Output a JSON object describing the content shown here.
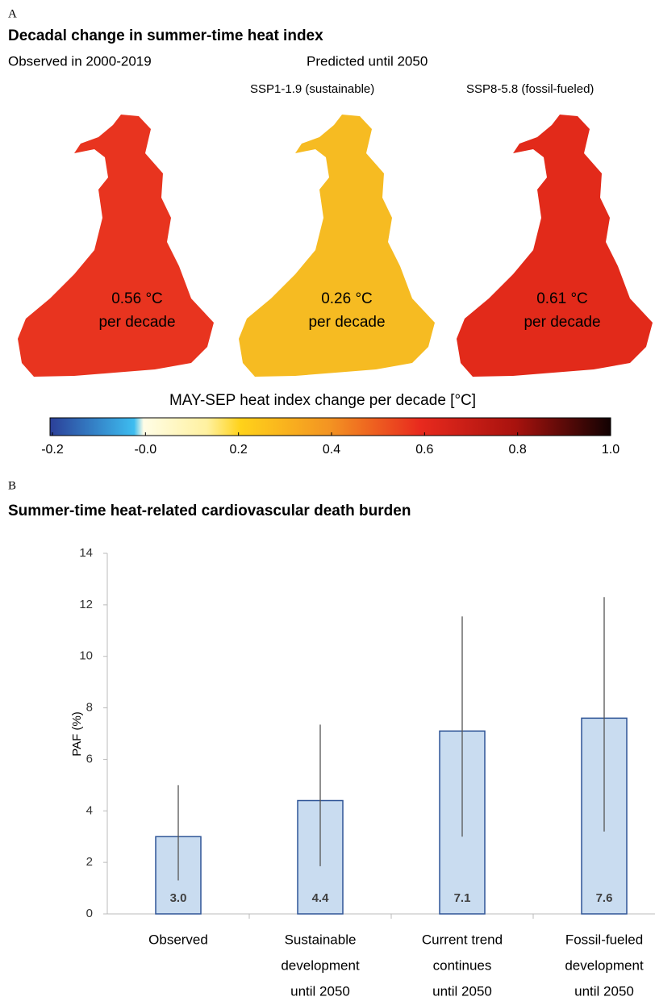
{
  "panel_a": {
    "panel_label": "A",
    "title": "Decadal change in summer-time heat index",
    "observed_label": "Observed  in 2000-2019",
    "predicted_label": "Predicted  until 2050",
    "maps": [
      {
        "value": 0.56,
        "value_label": "0.56 °C",
        "unit": "per decade",
        "color": "#e8341f"
      },
      {
        "scenario": "SSP1-1.9 (sustainable)",
        "value": 0.26,
        "value_label": "0.26 °C",
        "unit": "per decade",
        "color": "#f6bb22"
      },
      {
        "scenario": "SSP8-5.8 (fossil-fueled)",
        "value": 0.61,
        "value_label": "0.61 °C",
        "unit": "per decade",
        "color": "#e22a1a"
      }
    ],
    "colorbar": {
      "title": "MAY-SEP heat index change per decade [°C]",
      "xlim": [
        -0.2,
        1.0
      ],
      "xticks": [
        -0.2,
        {
          "value": 0,
          "label": "-0.0"
        },
        0.2,
        0.4,
        0.6,
        0.8,
        {
          "value": 1,
          "label": "1.0"
        }
      ]
    }
  },
  "chart_data": {
    "type": "bar",
    "panel_label": "B",
    "title": "Summer-time heat-related cardiovascular death burden",
    "ylabel": "PAF (%)",
    "categories": [
      [
        "Observed"
      ],
      [
        "Sustainable",
        "development",
        "until 2050"
      ],
      [
        "Current trend",
        "continues",
        "until 2050"
      ],
      [
        "Fossil-fueled",
        "development",
        "until 2050"
      ]
    ],
    "values": [
      3.0,
      4.4,
      7.1,
      7.6
    ],
    "value_labels": [
      "3.0",
      "4.4",
      "7.1",
      "7.6"
    ],
    "error_low": [
      1.3,
      1.85,
      3.0,
      3.2
    ],
    "error_high": [
      5.0,
      7.35,
      11.55,
      12.3
    ],
    "color": "#c9dcf0",
    "edge_color": "#2f5597",
    "ylim": [
      0,
      14
    ],
    "yticks": [
      0,
      2,
      4,
      6,
      8,
      10,
      12,
      14
    ],
    "grid": false
  }
}
